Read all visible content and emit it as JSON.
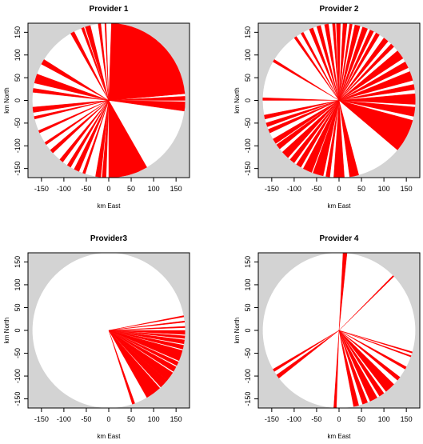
{
  "chart_data": [
    {
      "type": "pie",
      "title": "Provider 1",
      "xlabel": "km East",
      "ylabel": "km North",
      "xlim": [
        -180,
        180
      ],
      "ylim": [
        -170,
        170
      ],
      "radius": 170,
      "x_ticks": [
        -150,
        -100,
        -50,
        0,
        50,
        100,
        150
      ],
      "y_ticks": [
        -150,
        -100,
        -50,
        0,
        50,
        100,
        150
      ],
      "background_color": "#d3d3d3",
      "disc_color": "#ffffff",
      "sector_color": "#ff0000",
      "sectors_deg": [
        [
          -8,
          -3
        ],
        [
          -6,
          -4.5
        ],
        [
          -3,
          -1
        ],
        [
          0,
          3
        ],
        [
          2,
          3
        ],
        [
          5,
          6.5
        ],
        [
          5,
          88
        ],
        [
          -90,
          -60
        ],
        [
          -70,
          -66
        ],
        [
          -95,
          -92
        ],
        [
          -100,
          -96
        ],
        [
          -110,
          -108
        ],
        [
          -117,
          -113
        ],
        [
          -123,
          -120
        ],
        [
          -130,
          -127
        ],
        [
          -140,
          -137
        ],
        [
          -147,
          -145
        ],
        [
          -157,
          -155
        ],
        [
          -168,
          -166
        ],
        [
          -175,
          -172
        ],
        [
          -174,
          -171
        ],
        [
          171,
          174
        ],
        [
          160,
          167
        ],
        [
          148,
          152
        ],
        [
          117,
          120
        ],
        [
          109,
          111
        ],
        [
          104,
          108
        ],
        [
          96,
          98
        ],
        [
          92,
          93
        ]
      ]
    },
    {
      "type": "pie",
      "title": "Provider 2",
      "xlabel": "km East",
      "ylabel": "km North",
      "xlim": [
        -180,
        180
      ],
      "ylim": [
        -170,
        170
      ],
      "radius": 170,
      "x_ticks": [
        -150,
        -100,
        -50,
        0,
        50,
        100,
        150
      ],
      "y_ticks": [
        -150,
        -100,
        -50,
        0,
        50,
        100,
        150
      ],
      "background_color": "#d3d3d3",
      "disc_color": "#ffffff",
      "sector_color": "#ff0000",
      "sectors_deg": [
        [
          -40,
          -15
        ],
        [
          -12,
          -5
        ],
        [
          -3,
          5
        ],
        [
          8,
          12
        ],
        [
          15,
          22
        ],
        [
          25,
          30
        ],
        [
          33,
          40
        ],
        [
          44,
          47
        ],
        [
          50,
          54
        ],
        [
          58,
          61
        ],
        [
          63,
          66
        ],
        [
          68,
          72
        ],
        [
          74,
          78
        ],
        [
          80,
          82
        ],
        [
          84,
          87
        ],
        [
          89,
          92
        ],
        [
          93,
          95
        ],
        [
          98,
          101
        ],
        [
          104,
          107
        ],
        [
          110,
          113
        ],
        [
          118,
          120
        ],
        [
          124,
          126
        ],
        [
          148,
          150
        ],
        [
          -80,
          -75
        ],
        [
          -82,
          -78
        ],
        [
          -94,
          -86
        ],
        [
          -100,
          -97
        ],
        [
          -110,
          -102
        ],
        [
          -118,
          -111
        ],
        [
          -124,
          -120
        ],
        [
          -130,
          -126
        ],
        [
          -138,
          -132
        ],
        [
          -145,
          -141
        ],
        [
          -150,
          -146
        ],
        [
          -158,
          -155
        ],
        [
          -163,
          -160
        ],
        [
          -169,
          -166
        ],
        [
          178,
          180
        ]
      ]
    },
    {
      "type": "pie",
      "title": "Provider3",
      "xlabel": "km East",
      "ylabel": "km North",
      "xlim": [
        -180,
        180
      ],
      "ylim": [
        -170,
        170
      ],
      "radius": 170,
      "x_ticks": [
        -150,
        -100,
        -50,
        0,
        50,
        100,
        150
      ],
      "y_ticks": [
        -150,
        -100,
        -50,
        0,
        50,
        100,
        150
      ],
      "background_color": "#d3d3d3",
      "disc_color": "#ffffff",
      "sector_color": "#ff0000",
      "sectors_deg": [
        [
          -72,
          -70
        ],
        [
          -60,
          -48
        ],
        [
          -47,
          -40
        ],
        [
          -40,
          -33
        ],
        [
          -32,
          -28
        ],
        [
          -27,
          -24
        ],
        [
          -23,
          -15
        ],
        [
          -14,
          -11
        ],
        [
          -10,
          -7
        ],
        [
          -6,
          -4
        ],
        [
          -3,
          0
        ],
        [
          2,
          3
        ],
        [
          6,
          7
        ],
        [
          10,
          11
        ]
      ]
    },
    {
      "type": "pie",
      "title": "Provider 4",
      "xlabel": "km East",
      "ylabel": "km North",
      "xlim": [
        -180,
        180
      ],
      "ylim": [
        -170,
        170
      ],
      "radius": 170,
      "x_ticks": [
        -150,
        -100,
        -50,
        0,
        50,
        100,
        150
      ],
      "y_ticks": [
        -150,
        -100,
        -50,
        0,
        50,
        100,
        150
      ],
      "background_color": "#d3d3d3",
      "disc_color": "#ffffff",
      "sector_color": "#ff0000",
      "sectors_deg": [
        [
          84,
          87
        ],
        [
          44,
          45
        ],
        [
          -17,
          -16
        ],
        [
          -20,
          -19
        ],
        [
          -30,
          -28
        ],
        [
          -40,
          -37
        ],
        [
          -52,
          -44
        ],
        [
          -58,
          -54
        ],
        [
          -66,
          -60
        ],
        [
          -72,
          -68
        ],
        [
          -79,
          -75
        ],
        [
          -94,
          -92
        ],
        [
          -145,
          -142
        ],
        [
          -150,
          -148
        ]
      ]
    }
  ]
}
